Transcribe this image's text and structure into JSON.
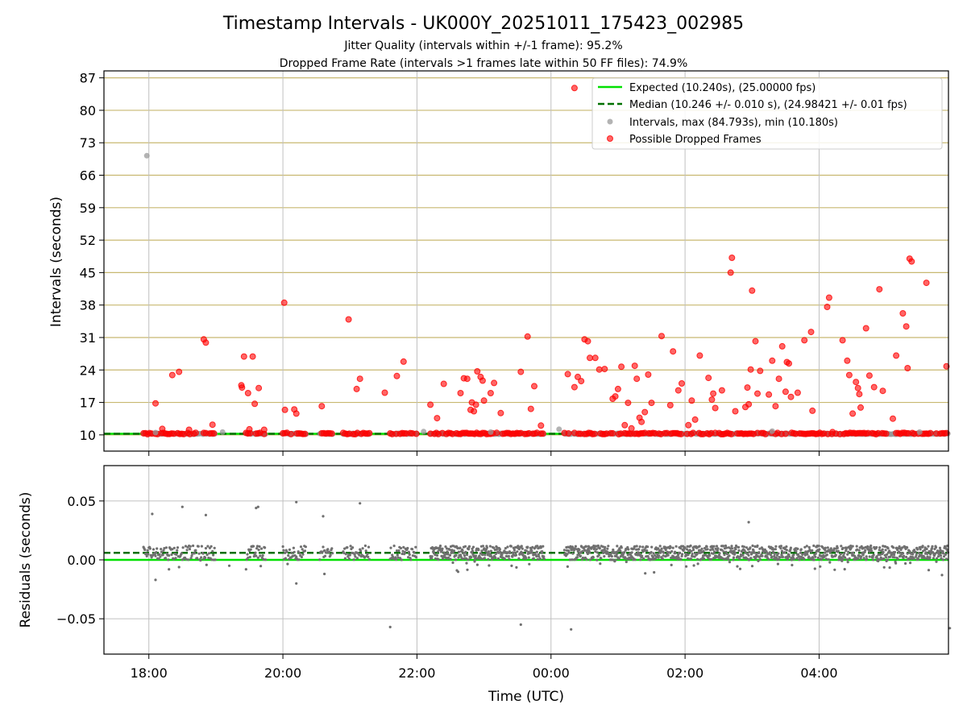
{
  "chart_data": [
    {
      "type": "scatter",
      "title": "Timestamp Intervals - UK000Y_20251011_175423_002985",
      "subtitle1": "Jitter Quality (intervals within +/-1 frame): 95.2%",
      "subtitle2": "Dropped Frame Rate (intervals >1 frames late within 50 FF files): 74.9%",
      "ylabel": "Intervals (seconds)",
      "ylim": [
        6.5,
        88.5
      ],
      "yticks": [
        10,
        17,
        24,
        31,
        38,
        45,
        52,
        59,
        66,
        73,
        80,
        87
      ],
      "xlim_hours": [
        17.33,
        29.93
      ],
      "xticks": [
        {
          "h": 18,
          "label": "18:00"
        },
        {
          "h": 20,
          "label": "20:00"
        },
        {
          "h": 22,
          "label": "22:00"
        },
        {
          "h": 24,
          "label": "00:00"
        },
        {
          "h": 26,
          "label": "02:00"
        },
        {
          "h": 28,
          "label": "04:00"
        }
      ],
      "expected_interval": 10.24,
      "median_interval": 10.246,
      "legend": {
        "position": "top-right",
        "entries": [
          "Expected (10.240s), (25.00000 fps)",
          "Median (10.246 +/- 0.010 s), (24.98421 +/- 0.01 fps)",
          "Intervals, max (84.793s), min (10.180s)",
          "Possible Dropped Frames"
        ]
      },
      "colors": {
        "expected": "#00e000",
        "median": "#007000",
        "intervals": "#999999",
        "dropped": "#ff0000",
        "grid_y": "#c8b870",
        "grid_x": "#c0c0c0"
      },
      "base_segments_hours": [
        [
          17.92,
          19.0
        ],
        [
          19.45,
          19.75
        ],
        [
          20.0,
          20.35
        ],
        [
          20.55,
          20.75
        ],
        [
          20.9,
          21.3
        ],
        [
          21.6,
          22.0
        ],
        [
          22.2,
          23.9
        ],
        [
          24.2,
          29.93
        ]
      ],
      "intervals_points": [
        [
          17.97,
          70.2
        ],
        [
          18.1,
          10.5
        ],
        [
          19.1,
          10.6
        ],
        [
          22.1,
          10.7
        ],
        [
          23.1,
          10.6
        ],
        [
          24.12,
          11.2
        ],
        [
          27.3,
          10.8
        ],
        [
          29.5,
          10.6
        ]
      ],
      "dropped_points": [
        [
          18.1,
          16.8
        ],
        [
          18.2,
          11.3
        ],
        [
          18.35,
          22.9
        ],
        [
          18.45,
          23.6
        ],
        [
          18.6,
          11.1
        ],
        [
          18.82,
          30.6
        ],
        [
          18.85,
          29.9
        ],
        [
          18.95,
          12.2
        ],
        [
          19.38,
          20.7
        ],
        [
          19.39,
          20.2
        ],
        [
          19.42,
          26.9
        ],
        [
          19.48,
          19.0
        ],
        [
          19.5,
          11.2
        ],
        [
          19.55,
          26.9
        ],
        [
          19.58,
          16.7
        ],
        [
          19.64,
          20.1
        ],
        [
          19.72,
          11.1
        ],
        [
          20.02,
          38.5
        ],
        [
          20.03,
          15.4
        ],
        [
          20.17,
          15.5
        ],
        [
          20.2,
          14.6
        ],
        [
          20.58,
          16.2
        ],
        [
          20.98,
          34.9
        ],
        [
          21.1,
          19.9
        ],
        [
          21.15,
          22.1
        ],
        [
          21.52,
          19.1
        ],
        [
          21.7,
          22.7
        ],
        [
          21.8,
          25.8
        ],
        [
          22.2,
          16.5
        ],
        [
          22.3,
          13.6
        ],
        [
          22.4,
          21.0
        ],
        [
          22.65,
          19.0
        ],
        [
          22.7,
          22.2
        ],
        [
          22.75,
          22.1
        ],
        [
          22.8,
          15.4
        ],
        [
          22.82,
          17.0
        ],
        [
          22.85,
          15.1
        ],
        [
          22.88,
          16.5
        ],
        [
          22.9,
          23.7
        ],
        [
          22.95,
          22.5
        ],
        [
          22.98,
          21.7
        ],
        [
          23.0,
          17.4
        ],
        [
          23.1,
          19.0
        ],
        [
          23.15,
          21.2
        ],
        [
          23.25,
          14.7
        ],
        [
          23.55,
          23.6
        ],
        [
          23.65,
          31.2
        ],
        [
          23.7,
          15.6
        ],
        [
          23.75,
          20.5
        ],
        [
          23.85,
          12.0
        ],
        [
          24.25,
          23.1
        ],
        [
          24.35,
          84.8
        ],
        [
          24.35,
          20.3
        ],
        [
          24.4,
          22.5
        ],
        [
          24.45,
          21.6
        ],
        [
          24.5,
          30.6
        ],
        [
          24.55,
          30.2
        ],
        [
          24.58,
          26.6
        ],
        [
          24.66,
          26.6
        ],
        [
          24.72,
          24.1
        ],
        [
          24.8,
          24.2
        ],
        [
          24.92,
          17.8
        ],
        [
          24.96,
          18.3
        ],
        [
          25.0,
          19.9
        ],
        [
          25.05,
          24.7
        ],
        [
          25.1,
          12.1
        ],
        [
          25.15,
          16.9
        ],
        [
          25.2,
          11.4
        ],
        [
          25.25,
          24.9
        ],
        [
          25.28,
          22.1
        ],
        [
          25.32,
          13.7
        ],
        [
          25.35,
          12.8
        ],
        [
          25.4,
          14.9
        ],
        [
          25.45,
          23.0
        ],
        [
          25.5,
          16.9
        ],
        [
          25.65,
          31.3
        ],
        [
          25.78,
          16.4
        ],
        [
          25.82,
          28.0
        ],
        [
          25.9,
          19.6
        ],
        [
          25.95,
          21.1
        ],
        [
          26.05,
          12.1
        ],
        [
          26.1,
          17.4
        ],
        [
          26.15,
          13.3
        ],
        [
          26.22,
          27.1
        ],
        [
          26.35,
          22.3
        ],
        [
          26.4,
          17.6
        ],
        [
          26.42,
          18.9
        ],
        [
          26.45,
          15.8
        ],
        [
          26.55,
          19.6
        ],
        [
          26.68,
          45.0
        ],
        [
          26.7,
          48.2
        ],
        [
          26.75,
          15.1
        ],
        [
          26.9,
          16.0
        ],
        [
          26.93,
          20.2
        ],
        [
          26.95,
          16.6
        ],
        [
          26.98,
          24.1
        ],
        [
          27.0,
          41.1
        ],
        [
          27.05,
          30.2
        ],
        [
          27.08,
          18.9
        ],
        [
          27.12,
          23.8
        ],
        [
          27.25,
          18.7
        ],
        [
          27.3,
          26.0
        ],
        [
          27.35,
          16.2
        ],
        [
          27.4,
          22.1
        ],
        [
          27.45,
          29.1
        ],
        [
          27.5,
          19.3
        ],
        [
          27.52,
          25.7
        ],
        [
          27.55,
          25.4
        ],
        [
          27.58,
          18.2
        ],
        [
          27.68,
          19.1
        ],
        [
          27.78,
          30.4
        ],
        [
          27.88,
          32.2
        ],
        [
          27.9,
          15.2
        ],
        [
          28.12,
          37.6
        ],
        [
          28.15,
          39.6
        ],
        [
          28.2,
          10.6
        ],
        [
          28.35,
          30.4
        ],
        [
          28.42,
          26.0
        ],
        [
          28.45,
          22.9
        ],
        [
          28.5,
          14.6
        ],
        [
          28.55,
          21.4
        ],
        [
          28.58,
          20.1
        ],
        [
          28.6,
          18.8
        ],
        [
          28.62,
          15.9
        ],
        [
          28.7,
          33.0
        ],
        [
          28.75,
          22.8
        ],
        [
          28.82,
          20.3
        ],
        [
          28.9,
          41.4
        ],
        [
          28.95,
          19.5
        ],
        [
          29.1,
          13.5
        ],
        [
          29.15,
          27.1
        ],
        [
          29.25,
          36.2
        ],
        [
          29.3,
          33.4
        ],
        [
          29.32,
          24.4
        ],
        [
          29.35,
          48.0
        ],
        [
          29.38,
          47.4
        ],
        [
          29.6,
          42.8
        ],
        [
          29.9,
          24.8
        ]
      ]
    },
    {
      "type": "scatter",
      "xlabel": "Time (UTC)",
      "ylabel": "Residuals (seconds)",
      "ylim": [
        -0.08,
        0.08
      ],
      "yticks": [
        {
          "v": 0.05,
          "label": "0.05"
        },
        {
          "v": 0.0,
          "label": "0.00"
        },
        {
          "v": -0.05,
          "label": "−0.05"
        }
      ],
      "expected_residual": 0.0,
      "median_residual": 0.006,
      "outliers": [
        [
          18.05,
          0.039
        ],
        [
          18.5,
          0.045
        ],
        [
          18.85,
          0.038
        ],
        [
          19.6,
          0.044
        ],
        [
          19.63,
          0.045
        ],
        [
          20.2,
          0.049
        ],
        [
          20.6,
          0.037
        ],
        [
          21.15,
          0.048
        ],
        [
          18.1,
          -0.017
        ],
        [
          18.3,
          -0.008
        ],
        [
          19.2,
          -0.005
        ],
        [
          20.2,
          -0.02
        ],
        [
          20.62,
          -0.012
        ],
        [
          21.6,
          -0.057
        ],
        [
          23.55,
          -0.055
        ],
        [
          24.3,
          -0.059
        ],
        [
          26.95,
          0.032
        ],
        [
          29.95,
          -0.058
        ]
      ]
    }
  ]
}
